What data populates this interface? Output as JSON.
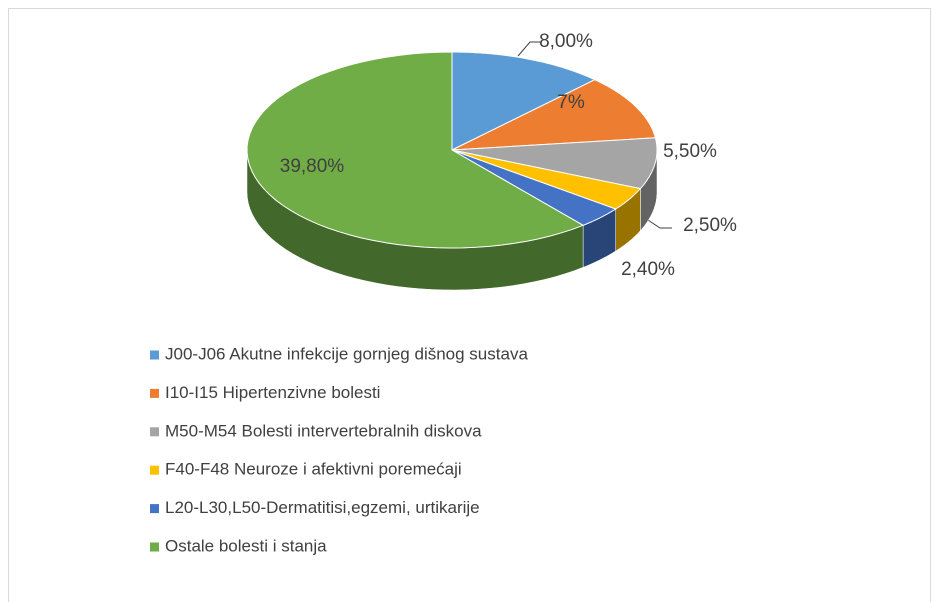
{
  "chart_data": {
    "type": "pie",
    "categories": [
      "J00-J06 Akutne infekcije gornjeg dišnog sustava",
      "I10-I15 Hipertenzivne bolesti",
      "M50-M54 Bolesti intervertebralnih diskova",
      "F40-F48 Neuroze i afektivni poremećaji",
      "L20-L30,L50-Dermatitisi,egzemi, urtikarije",
      "Ostale bolesti i stanja"
    ],
    "values": [
      8,
      7,
      5.5,
      2.5,
      2.4,
      39.8
    ],
    "value_labels": [
      "8,00%",
      "7%",
      "5,50%",
      "2,50%",
      "2,40%",
      "39,80%"
    ],
    "colors": [
      "#5b9bd5",
      "#ed7d31",
      "#a5a5a5",
      "#ffc000",
      "#4472c4",
      "#70ad47"
    ]
  }
}
